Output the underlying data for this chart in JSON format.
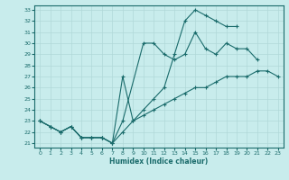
{
  "xlabel": "Humidex (Indice chaleur)",
  "bg_color": "#c8ecec",
  "grid_color": "#b0d8d8",
  "line_color": "#1a6b6b",
  "xlim": [
    -0.5,
    23.5
  ],
  "ylim": [
    20.6,
    33.4
  ],
  "yticks": [
    21,
    22,
    23,
    24,
    25,
    26,
    27,
    28,
    29,
    30,
    31,
    32,
    33
  ],
  "xticks": [
    0,
    1,
    2,
    3,
    4,
    5,
    6,
    7,
    8,
    9,
    10,
    11,
    12,
    13,
    14,
    15,
    16,
    17,
    18,
    19,
    20,
    21,
    22,
    23
  ],
  "line1_x": [
    0,
    1,
    2,
    3,
    4,
    5,
    6,
    7,
    8,
    10,
    11,
    12,
    13,
    14,
    15,
    16,
    17,
    18,
    19,
    20,
    21
  ],
  "line1_y": [
    23,
    22.5,
    22,
    22.5,
    21.5,
    21.5,
    21.5,
    21,
    23,
    30,
    30,
    29,
    28.5,
    29,
    31,
    29.5,
    29,
    30,
    29.5,
    29.5,
    28.5
  ],
  "line2_x": [
    0,
    1,
    2,
    3,
    4,
    5,
    6,
    7,
    8,
    9,
    10,
    11,
    12,
    13,
    14,
    15,
    16,
    17,
    18,
    19
  ],
  "line2_y": [
    23,
    22.5,
    22,
    22.5,
    21.5,
    21.5,
    21.5,
    21,
    27,
    23,
    24,
    25,
    26,
    29,
    32,
    33,
    32.5,
    32,
    31.5,
    31.5
  ],
  "line3_x": [
    0,
    1,
    2,
    3,
    4,
    5,
    6,
    7,
    8,
    9,
    10,
    11,
    12,
    13,
    14,
    15,
    16,
    17,
    18,
    19,
    20,
    21,
    22,
    23
  ],
  "line3_y": [
    23,
    22.5,
    22,
    22.5,
    21.5,
    21.5,
    21.5,
    21,
    22,
    23,
    23.5,
    24,
    24.5,
    25,
    25.5,
    26,
    26,
    26.5,
    27,
    27,
    27,
    27.5,
    27.5,
    27
  ]
}
